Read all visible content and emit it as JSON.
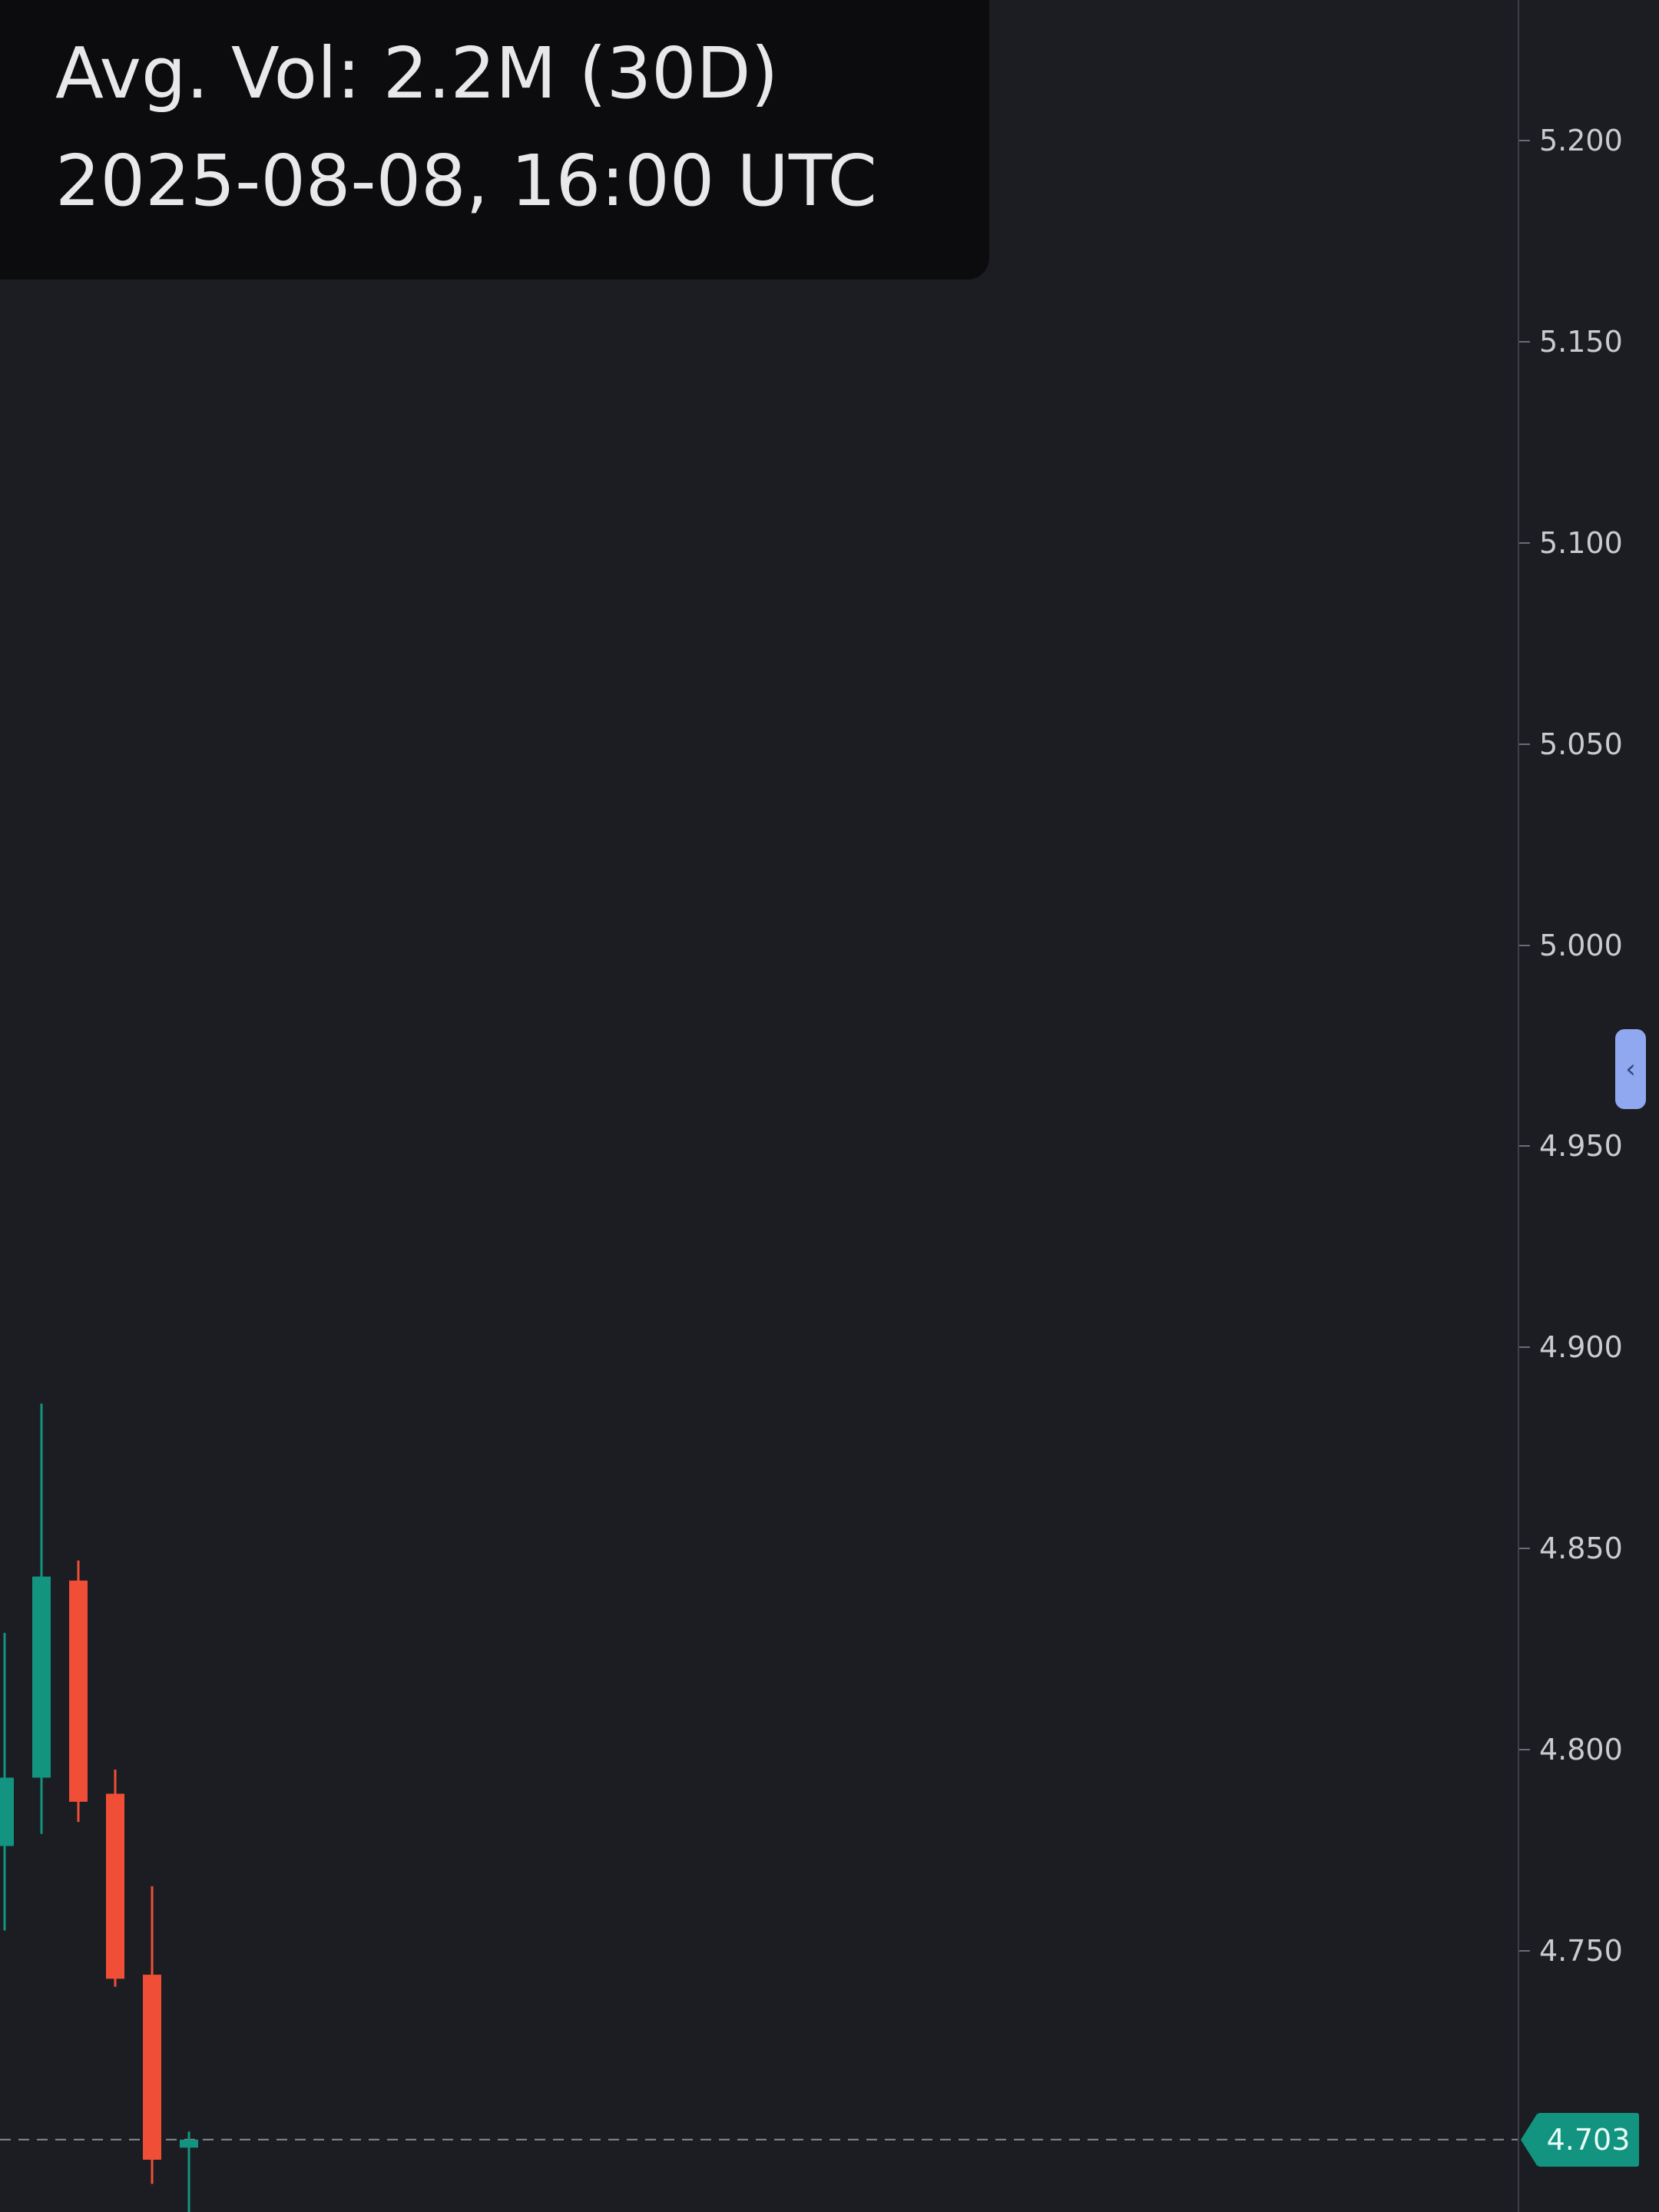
{
  "info": {
    "avg_volume": "Avg. Vol: 2.2M (30D)",
    "timestamp": "2025-08-08, 16:00 UTC"
  },
  "axis": {
    "ticks": [
      "5.200",
      "5.150",
      "5.100",
      "5.050",
      "5.000",
      "4.950",
      "4.900",
      "4.850",
      "4.800",
      "4.750"
    ],
    "last_price": "4.703"
  },
  "colors": {
    "background": "#1c1d22",
    "up": "#129480",
    "down": "#f04e36",
    "price_line": "#8a8c93"
  },
  "collapse_icon": "chevron-left-icon",
  "chart_data": {
    "type": "candlestick",
    "ylim": [
      4.685,
      5.235
    ],
    "candles": [
      {
        "open": 4.776,
        "high": 4.829,
        "low": 4.755,
        "close": 4.793,
        "direction": "up"
      },
      {
        "open": 4.793,
        "high": 4.886,
        "low": 4.779,
        "close": 4.843,
        "direction": "up"
      },
      {
        "open": 4.842,
        "high": 4.847,
        "low": 4.782,
        "close": 4.787,
        "direction": "down"
      },
      {
        "open": 4.789,
        "high": 4.795,
        "low": 4.741,
        "close": 4.743,
        "direction": "down"
      },
      {
        "open": 4.744,
        "high": 4.766,
        "low": 4.692,
        "close": 4.698,
        "direction": "down"
      },
      {
        "open": 4.701,
        "high": 4.705,
        "low": 4.68,
        "close": 4.703,
        "direction": "up"
      }
    ],
    "last_price": 4.703,
    "ticks": [
      5.2,
      5.15,
      5.1,
      5.05,
      5.0,
      4.95,
      4.9,
      4.85,
      4.8,
      4.75
    ]
  }
}
